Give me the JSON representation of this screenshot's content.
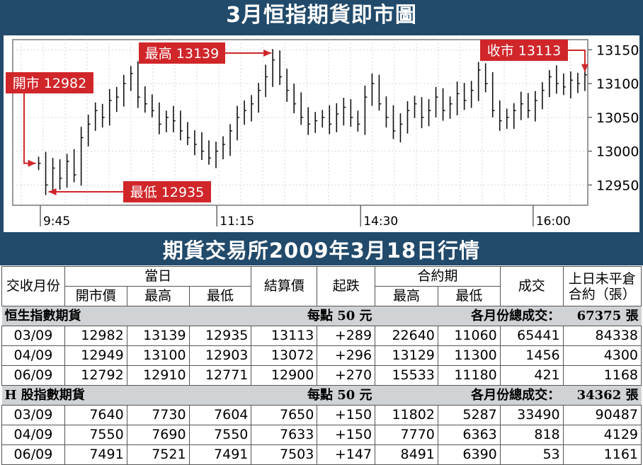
{
  "title": "3月恒指期貨即市圖",
  "table_title": "期貨交易所2009年3月18日行情",
  "chart_data": {
    "type": "candlestick",
    "title": "3月恒指期貨即市圖",
    "x_ticks": [
      "9:45",
      "11:15",
      "14:30",
      "16:00"
    ],
    "y_ticks": [
      12950,
      13000,
      13050,
      13100,
      13150
    ],
    "ylim": [
      12920,
      13165
    ],
    "grid": true,
    "annotations": [
      {
        "label": "開市 12982",
        "value": 12982,
        "at": "open"
      },
      {
        "label": "最高 13139",
        "value": 13139,
        "at": "high"
      },
      {
        "label": "最低 12935",
        "value": 12935,
        "at": "low"
      },
      {
        "label": "收市 13113",
        "value": 13113,
        "at": "close"
      }
    ],
    "series_close": [
      12982,
      12950,
      12975,
      12960,
      12985,
      12965,
      13020,
      13040,
      13060,
      13050,
      13075,
      13080,
      13100,
      13115,
      13080,
      13070,
      13060,
      13040,
      13050,
      13045,
      13030,
      13020,
      13010,
      13000,
      12990,
      13000,
      13010,
      13030,
      13050,
      13060,
      13070,
      13090,
      13110,
      13135,
      13110,
      13090,
      13070,
      13050,
      13040,
      13045,
      13050,
      13040,
      13055,
      13065,
      13050,
      13040,
      13080,
      13100,
      13070,
      13050,
      13030,
      13040,
      13060,
      13070,
      13050,
      13060,
      13080,
      13060,
      13070,
      13085,
      13075,
      13090,
      13120,
      13100,
      13060,
      13045,
      13050,
      13060,
      13070,
      13060,
      13075,
      13090,
      13110,
      13100,
      13095,
      13105,
      13100,
      13113
    ]
  },
  "table": {
    "headers": {
      "month": "交收月份",
      "day": "當日",
      "open": "開市價",
      "high": "最高",
      "low": "最低",
      "settle": "結算價",
      "change": "起跌",
      "contract": "合約期",
      "c_high": "最高",
      "c_low": "最低",
      "volume": "成交",
      "oi_line1": "上日未平倉",
      "oi_line2": "合約（張）"
    },
    "sections": [
      {
        "name": "恒生指數期貨",
        "per_point": "每點 50 元",
        "total_label": "各月份總成交：",
        "total": "67375 張",
        "rows": [
          [
            "03/09",
            "12982",
            "13139",
            "12935",
            "13113",
            "+289",
            "22640",
            "11060",
            "65441",
            "84338"
          ],
          [
            "04/09",
            "12949",
            "13100",
            "12903",
            "13072",
            "+296",
            "13129",
            "11300",
            "1456",
            "4300"
          ],
          [
            "06/09",
            "12792",
            "12910",
            "12771",
            "12900",
            "+270",
            "15533",
            "11180",
            "421",
            "1168"
          ]
        ]
      },
      {
        "name": "H 股指數期貨",
        "per_point": "每點 50 元",
        "total_label": "各月份總成交：",
        "total": "34362 張",
        "rows": [
          [
            "03/09",
            "7640",
            "7730",
            "7604",
            "7650",
            "+150",
            "11802",
            "5287",
            "33490",
            "90487"
          ],
          [
            "04/09",
            "7550",
            "7690",
            "7550",
            "7633",
            "+150",
            "7770",
            "6363",
            "818",
            "4129"
          ],
          [
            "06/09",
            "7491",
            "7521",
            "7491",
            "7503",
            "+147",
            "8491",
            "6390",
            "53",
            "1161"
          ]
        ]
      }
    ]
  },
  "colors": {
    "banner": "#214a6b",
    "label": "#d0262a",
    "section_bg": "#cfd3d6"
  }
}
